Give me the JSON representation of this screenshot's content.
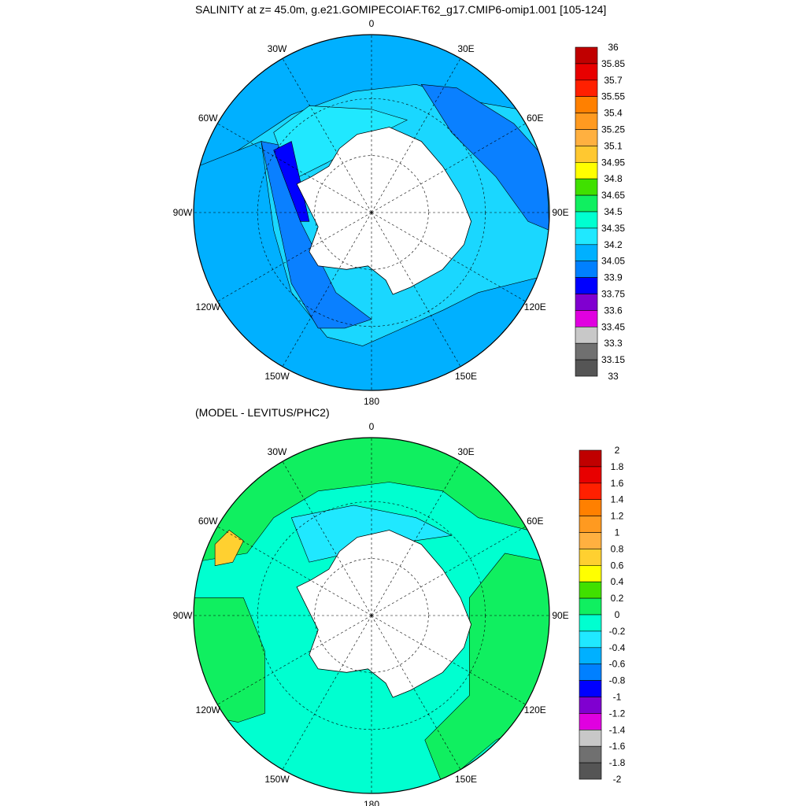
{
  "panels": [
    {
      "id": "top",
      "title": "SALINITY at z=  45.0m, g.e21.GOMIPECOIAF.T62_g17.CMIP6-omip1.001 [105-124]",
      "longitude_labels": [
        "0",
        "30E",
        "60E",
        "90E",
        "120E",
        "150E",
        "180",
        "150W",
        "120W",
        "90W",
        "60W",
        "30W"
      ],
      "colorbar": {
        "labels": [
          "36",
          "35.85",
          "35.7",
          "35.55",
          "35.4",
          "35.25",
          "35.1",
          "34.95",
          "34.8",
          "34.65",
          "34.5",
          "34.35",
          "34.2",
          "34.05",
          "33.9",
          "33.75",
          "33.6",
          "33.45",
          "33.3",
          "33.15",
          "33"
        ],
        "colors": [
          "#c00000",
          "#e80000",
          "#ff2000",
          "#ff8000",
          "#ff9a20",
          "#ffb040",
          "#ffc830",
          "#ffff00",
          "#40e000",
          "#10ef60",
          "#00ffd0",
          "#20e8ff",
          "#00b0ff",
          "#0080ff",
          "#0000ff",
          "#8000d0",
          "#e000e0",
          "#c8c8c8",
          "#707070",
          "#555555"
        ]
      },
      "field_colors": {
        "ocean_main": "#1ad7ff",
        "ocean_fresh": "#00b0ff",
        "ocean_fresher": "#0a80ff",
        "coastal_salty": "#20e8ff",
        "very_fresh": "#0000ff",
        "purple": "#8000d0",
        "land": "#ffffff"
      }
    },
    {
      "id": "bottom",
      "title": "(MODEL - LEVITUS/PHC2)",
      "longitude_labels": [
        "0",
        "30E",
        "60E",
        "90E",
        "120E",
        "150E",
        "180",
        "150W",
        "120W",
        "90W",
        "60W",
        "30W"
      ],
      "colorbar": {
        "labels": [
          "2",
          "1.8",
          "1.6",
          "1.4",
          "1.2",
          "1",
          "0.8",
          "0.6",
          "0.4",
          "0.2",
          "0",
          "-0.2",
          "-0.4",
          "-0.6",
          "-0.8",
          "-1",
          "-1.2",
          "-1.4",
          "-1.6",
          "-1.8",
          "-2"
        ],
        "colors": [
          "#c00000",
          "#e80000",
          "#ff2000",
          "#ff8000",
          "#ff9a20",
          "#ffb040",
          "#ffd030",
          "#ffff00",
          "#40e000",
          "#10ef60",
          "#00ffd0",
          "#20e8ff",
          "#00b0ff",
          "#0080ff",
          "#0000ff",
          "#8000d0",
          "#e000e0",
          "#c8c8c8",
          "#707070",
          "#555555"
        ]
      },
      "field_colors": {
        "ocean_main": "#00ffd0",
        "positive": "#10ef60",
        "negative": "#20e8ff",
        "warm_anomaly": "#ffd030",
        "land": "#ffffff"
      }
    }
  ]
}
